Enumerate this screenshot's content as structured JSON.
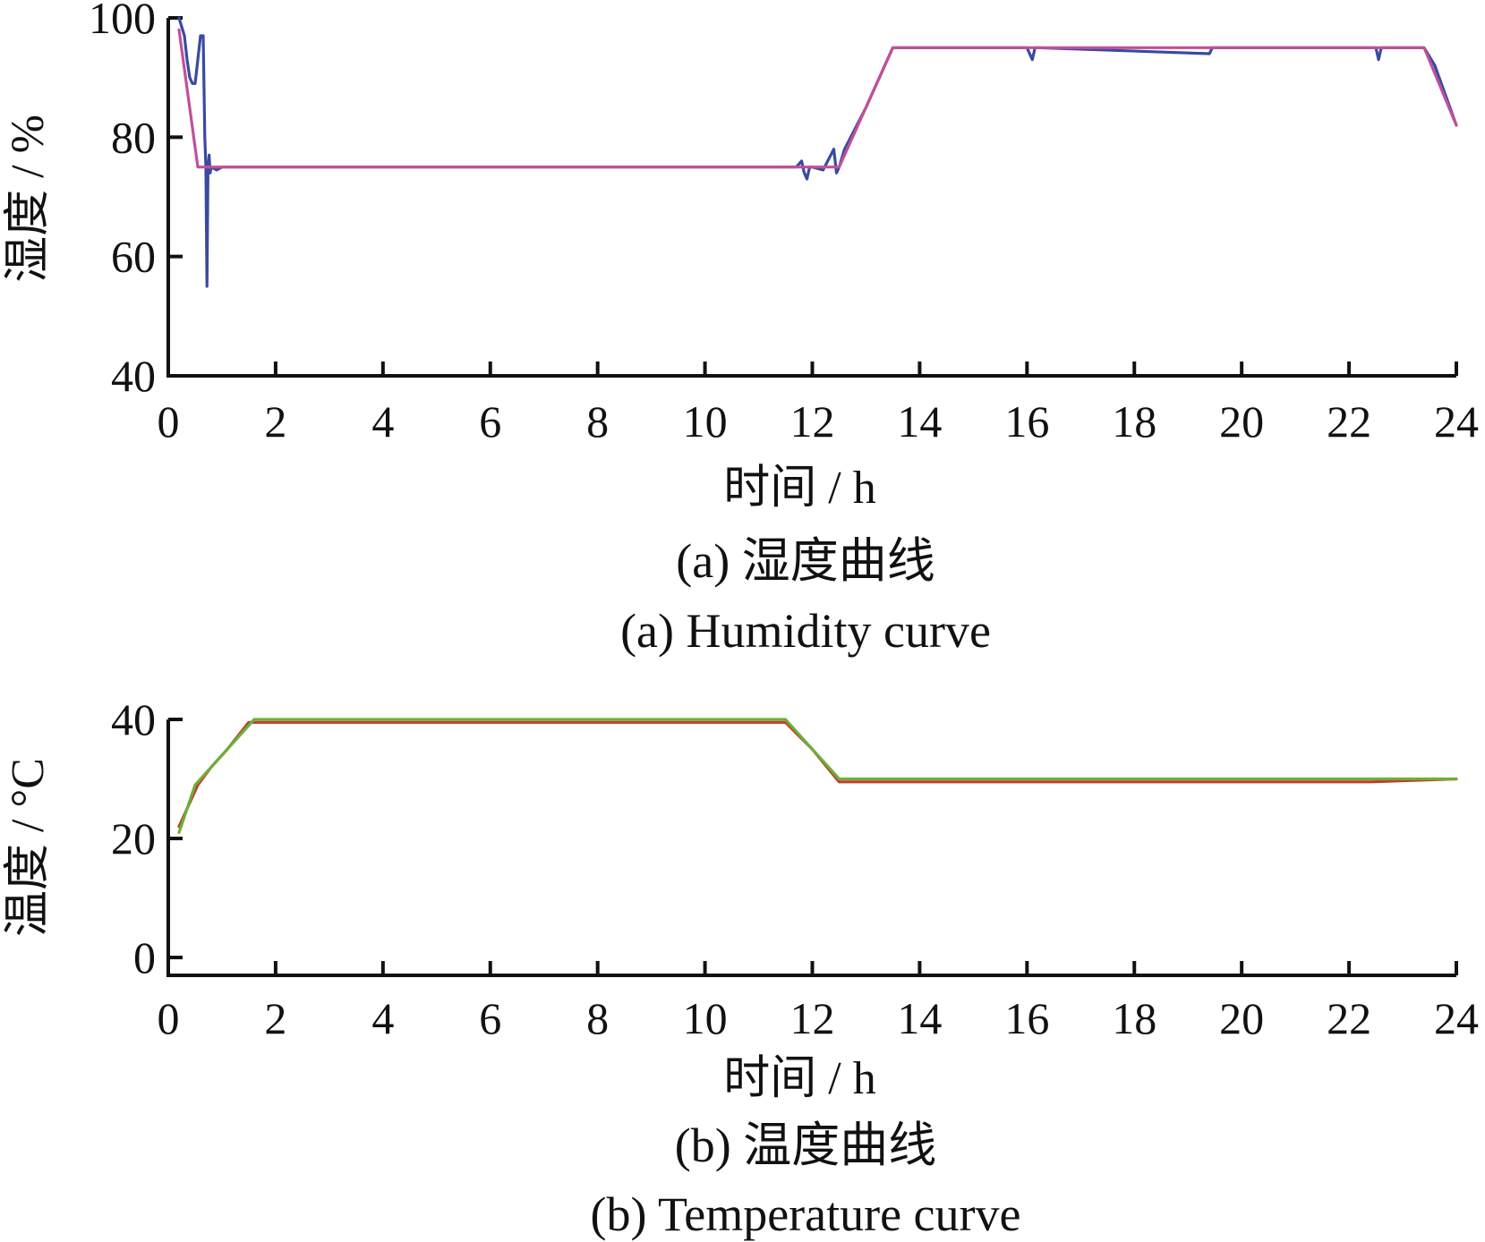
{
  "chart_data": [
    {
      "type": "line",
      "panel": "a",
      "ylabel": "湿度 / %",
      "xlabel": "时间 / h",
      "caption_cn": "(a) 湿度曲线",
      "caption_en": "(a) Humidity curve",
      "xlim": [
        0,
        24
      ],
      "ylim": [
        40,
        100
      ],
      "xticks": [
        0,
        2,
        4,
        6,
        8,
        10,
        12,
        14,
        16,
        18,
        20,
        22,
        24
      ],
      "yticks": [
        40,
        60,
        80,
        100
      ],
      "grid": false,
      "series": [
        {
          "color": "#3a4aa0",
          "x": [
            0.2,
            0.3,
            0.35,
            0.4,
            0.45,
            0.5,
            0.55,
            0.6,
            0.65,
            0.68,
            0.7,
            0.72,
            0.74,
            0.76,
            0.78,
            0.8,
            0.9,
            1.0,
            1.5,
            5,
            10,
            11.7,
            11.8,
            11.85,
            11.9,
            11.95,
            12.0,
            12.2,
            12.4,
            12.45,
            12.5,
            12.6,
            13.0,
            13.5,
            16.0,
            16.1,
            16.15,
            16.2,
            19.4,
            19.45,
            19.5,
            22.5,
            22.55,
            22.6,
            23.4,
            23.6,
            24.0
          ],
          "y": [
            100,
            97,
            93,
            90,
            89,
            89,
            93,
            97,
            97,
            80,
            75,
            55,
            75,
            77,
            74,
            75,
            74.5,
            75,
            75,
            75,
            75,
            75,
            76,
            74,
            73,
            75,
            75,
            74.5,
            78,
            74,
            75,
            78,
            85,
            95,
            95,
            93,
            95,
            95,
            94,
            95,
            95,
            95,
            93,
            95,
            95,
            92,
            82
          ]
        },
        {
          "color": "#c0509a",
          "x": [
            0.2,
            0.55,
            12.5,
            13.5,
            23.4,
            24.0
          ],
          "y": [
            98,
            75,
            75,
            95,
            95,
            82
          ]
        }
      ]
    },
    {
      "type": "line",
      "panel": "b",
      "ylabel": "温度 / °C",
      "xlabel": "时间 / h",
      "caption_cn": "(b) 温度曲线",
      "caption_en": "(b) Temperature curve",
      "xlim": [
        0,
        24
      ],
      "ylim": [
        -3,
        40
      ],
      "xticks": [
        0,
        2,
        4,
        6,
        8,
        10,
        12,
        14,
        16,
        18,
        20,
        22,
        24
      ],
      "yticks": [
        0,
        20,
        40
      ],
      "grid": false,
      "series": [
        {
          "color": "#c43a2a",
          "x": [
            0.2,
            0.4,
            0.55,
            0.8,
            1.1,
            1.5,
            6.5,
            7.8,
            8.0,
            8.7,
            10.3,
            11.5,
            12.0,
            12.5,
            13.6,
            17.3,
            22.4,
            24.0
          ],
          "y": [
            22,
            26,
            29,
            32,
            35,
            39.5,
            39.5,
            39.5,
            39.5,
            39.5,
            39.5,
            39.5,
            35,
            29.5,
            29.5,
            29.5,
            29.5,
            30
          ]
        },
        {
          "color": "#6ab03a",
          "x": [
            0.2,
            0.35,
            0.5,
            0.7,
            1.0,
            1.3,
            1.6,
            11.5,
            12.0,
            12.5,
            24.0
          ],
          "y": [
            21,
            25,
            29,
            31,
            34,
            37,
            40,
            40,
            35,
            30,
            30
          ]
        }
      ]
    }
  ]
}
